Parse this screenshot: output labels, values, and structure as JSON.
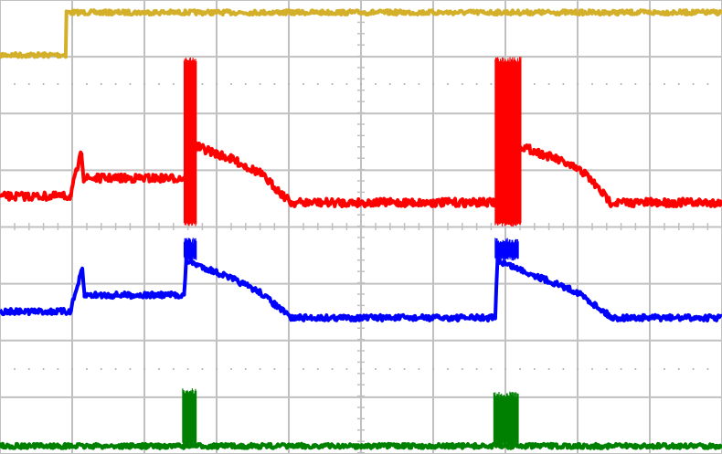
{
  "chart_data": {
    "type": "line",
    "title": "",
    "xlabel": "",
    "ylabel": "",
    "x_unit": "divisions",
    "y_unit": "divisions",
    "xlim": [
      0,
      10
    ],
    "ylim": [
      0,
      8
    ],
    "grid": true,
    "background": "#ffffff",
    "grid_color": "#c0c0c0",
    "series": [
      {
        "color": "#d4b02a",
        "noise": 0.04,
        "points": [
          [
            0,
            7.03
          ],
          [
            0.91,
            7.03
          ],
          [
            0.92,
            7.78
          ],
          [
            10,
            7.78
          ]
        ],
        "bursts": []
      },
      {
        "color": "#ff0000",
        "noise": 0.07,
        "points": [
          [
            0,
            4.54
          ],
          [
            0.97,
            4.54
          ],
          [
            1.13,
            5.31
          ],
          [
            1.16,
            4.86
          ],
          [
            2.55,
            4.86
          ],
          [
            2.72,
            5.42
          ],
          [
            3.2,
            5.2
          ],
          [
            3.6,
            4.95
          ],
          [
            4.03,
            4.43
          ],
          [
            6.86,
            4.43
          ],
          [
            7.22,
            5.42
          ],
          [
            7.7,
            5.2
          ],
          [
            8.1,
            4.95
          ],
          [
            8.46,
            4.43
          ],
          [
            10,
            4.43
          ]
        ],
        "bursts": [
          [
            2.55,
            2.72,
            4.01,
            7.0
          ],
          [
            6.86,
            7.22,
            4.01,
            7.0
          ]
        ]
      },
      {
        "color": "#0000ff",
        "noise": 0.05,
        "points": [
          [
            0,
            2.51
          ],
          [
            0.97,
            2.51
          ],
          [
            1.14,
            3.25
          ],
          [
            1.17,
            2.8
          ],
          [
            2.55,
            2.8
          ],
          [
            2.58,
            3.41
          ],
          [
            3.2,
            3.1
          ],
          [
            3.6,
            2.85
          ],
          [
            4.03,
            2.4
          ],
          [
            6.86,
            2.4
          ],
          [
            6.89,
            3.41
          ],
          [
            7.5,
            3.1
          ],
          [
            8.0,
            2.85
          ],
          [
            8.48,
            2.4
          ],
          [
            10,
            2.4
          ]
        ],
        "bursts": [
          [
            2.55,
            2.72,
            3.41,
            3.81
          ],
          [
            6.86,
            7.18,
            3.41,
            3.81
          ]
        ]
      },
      {
        "color": "#008000",
        "noise": 0.04,
        "points": [
          [
            0,
            0.14
          ],
          [
            10,
            0.14
          ]
        ],
        "bursts": [
          [
            2.53,
            2.72,
            0.14,
            1.16
          ],
          [
            6.84,
            7.18,
            0.14,
            1.1
          ]
        ]
      }
    ]
  }
}
